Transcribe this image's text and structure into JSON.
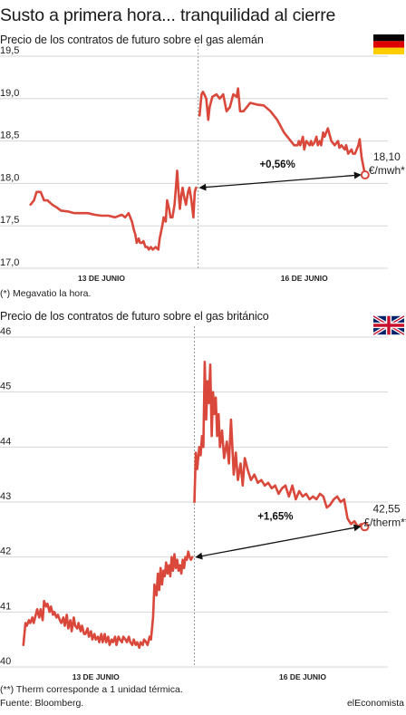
{
  "title": "Susto a primera hora... tranquilidad al cierre",
  "footer": {
    "source": "Fuente: Bloomberg.",
    "brand": "elEconomista"
  },
  "colors": {
    "line": "#d9483b",
    "grid": "#d6d6d6",
    "arrow": "#111111",
    "dash": "#9a9a9a"
  },
  "icons": {
    "chart1_flag": "germany-flag-icon",
    "chart2_flag": "uk-flag-icon"
  },
  "chart_data": [
    {
      "type": "line",
      "title": "Precio de los contratos de futuro sobre el gas alemán",
      "ylim": [
        17.0,
        19.5
      ],
      "yticks": [
        17.0,
        17.5,
        18.0,
        18.5,
        19.0,
        19.5
      ],
      "ytick_labels": [
        "17,0",
        "17,5",
        "18,0",
        "18,5",
        "19,0",
        "19,5"
      ],
      "xtick_labels": [
        "13 DE JUNIO",
        "16 DE JUNIO"
      ],
      "xticks": [
        13,
        16
      ],
      "xlim": [
        11.9,
        17.13
      ],
      "session_break": 14.43,
      "note": "(*) Megavatio la hora.",
      "change_label": "+0,56%",
      "end_value_label": "18,10",
      "end_unit_label": "€/mwh*",
      "grid": true,
      "series": [
        {
          "x": [
            11.95,
            12.0,
            12.04,
            12.06,
            12.1,
            12.15,
            12.2,
            12.27,
            12.33,
            12.4,
            12.5,
            12.6,
            12.7,
            12.8,
            12.9,
            13.0,
            13.1,
            13.2,
            13.3,
            13.35,
            13.4,
            13.45,
            13.48,
            13.5,
            13.52,
            13.55,
            13.57,
            13.6,
            13.62,
            13.65,
            13.68,
            13.7,
            13.73,
            13.76,
            13.8,
            13.84,
            13.86,
            13.9,
            13.92,
            13.95,
            13.97,
            14.0,
            14.02,
            14.05,
            14.08,
            14.1,
            14.12,
            14.14,
            14.16,
            14.18,
            14.2,
            14.22,
            14.25,
            14.28,
            14.3,
            14.33,
            14.36,
            14.38,
            14.4
          ],
          "y": [
            17.75,
            17.8,
            17.9,
            17.9,
            17.9,
            17.8,
            17.8,
            17.75,
            17.72,
            17.68,
            17.67,
            17.65,
            17.65,
            17.65,
            17.63,
            17.62,
            17.62,
            17.6,
            17.63,
            17.6,
            17.65,
            17.55,
            17.45,
            17.4,
            17.3,
            17.35,
            17.3,
            17.3,
            17.32,
            17.25,
            17.25,
            17.22,
            17.25,
            17.22,
            17.25,
            17.22,
            17.35,
            17.5,
            17.6,
            17.55,
            17.8,
            17.7,
            17.6,
            17.6,
            17.75,
            17.95,
            18.15,
            17.9,
            17.7,
            17.85,
            17.95,
            17.85,
            17.75,
            17.9,
            17.95,
            17.8,
            17.6,
            17.9,
            17.95
          ]
        },
        {
          "x": [
            14.45,
            14.48,
            14.5,
            14.52,
            14.55,
            14.58,
            14.6,
            14.64,
            14.7,
            14.75,
            14.8,
            14.85,
            14.9,
            14.95,
            15.0,
            15.02,
            15.05,
            15.1,
            15.15,
            15.2,
            15.3,
            15.4,
            15.5,
            15.6,
            15.7,
            15.8,
            15.85,
            15.9,
            15.92,
            15.94,
            15.96,
            15.98,
            16.0,
            16.03,
            16.05,
            16.08,
            16.1,
            16.12,
            16.15,
            16.18,
            16.2,
            16.23,
            16.25,
            16.28,
            16.3,
            16.35,
            16.4,
            16.45,
            16.5,
            16.52,
            16.55,
            16.6,
            16.62,
            16.65,
            16.7,
            16.72,
            16.75,
            16.8,
            16.82,
            16.85,
            16.9
          ],
          "y": [
            18.8,
            19.05,
            19.08,
            19.05,
            19.0,
            18.75,
            18.9,
            19.02,
            19.05,
            19.0,
            19.05,
            18.85,
            18.9,
            19.05,
            19.02,
            19.12,
            18.85,
            18.85,
            18.9,
            18.95,
            18.93,
            18.92,
            18.85,
            18.75,
            18.6,
            18.5,
            18.45,
            18.45,
            18.5,
            18.45,
            18.5,
            18.55,
            18.4,
            18.5,
            18.48,
            18.45,
            18.5,
            18.45,
            18.48,
            18.55,
            18.45,
            18.5,
            18.45,
            18.6,
            18.55,
            18.65,
            18.5,
            18.45,
            18.5,
            18.42,
            18.45,
            18.4,
            18.45,
            18.35,
            18.4,
            18.35,
            18.35,
            18.45,
            18.52,
            18.3,
            18.1
          ]
        }
      ]
    },
    {
      "type": "line",
      "title": "Precio de los contratos de futuro sobre el gas británico",
      "ylim": [
        40,
        46
      ],
      "yticks": [
        40,
        41,
        42,
        43,
        44,
        45,
        46
      ],
      "ytick_labels": [
        "40",
        "41",
        "42",
        "43",
        "44",
        "45",
        "46"
      ],
      "xtick_labels": [
        "13 DE JUNIO",
        "16 DE JUNIO"
      ],
      "xticks": [
        13,
        16
      ],
      "xlim": [
        11.9,
        17.13
      ],
      "session_break": 14.43,
      "note": "(**) Therm corresponde a 1 unidad térmica.",
      "change_label": "+1,65%",
      "end_value_label": "42,55",
      "end_unit_label": "£/therm**",
      "grid": true,
      "series": [
        {
          "x": [
            11.95,
            11.98,
            12.0,
            12.03,
            12.05,
            12.08,
            12.1,
            12.13,
            12.15,
            12.18,
            12.2,
            12.23,
            12.25,
            12.28,
            12.3,
            12.33,
            12.35,
            12.38,
            12.4,
            12.43,
            12.45,
            12.48,
            12.5,
            12.53,
            12.55,
            12.58,
            12.6,
            12.63,
            12.65,
            12.68,
            12.7,
            12.73,
            12.75,
            12.78,
            12.8,
            12.83,
            12.85,
            12.88,
            12.9,
            12.93,
            12.95,
            12.98,
            13.0,
            13.03,
            13.05,
            13.08,
            13.1,
            13.13,
            13.15,
            13.18,
            13.2,
            13.23,
            13.25,
            13.28,
            13.3,
            13.33,
            13.35,
            13.38,
            13.4,
            13.43,
            13.45,
            13.48,
            13.5,
            13.53,
            13.55,
            13.58,
            13.6,
            13.63,
            13.65,
            13.68,
            13.7,
            13.73,
            13.75,
            13.78,
            13.8,
            13.83,
            13.85,
            13.88,
            13.9,
            13.92,
            13.94,
            13.96,
            13.98,
            14.0,
            14.02,
            14.04,
            14.06,
            14.08,
            14.1,
            14.12,
            14.14,
            14.16,
            14.18,
            14.2,
            14.22,
            14.24,
            14.26,
            14.28,
            14.3,
            14.32,
            14.34,
            14.36,
            14.38,
            14.4
          ],
          "y": [
            40.4,
            40.8,
            40.75,
            40.85,
            40.8,
            40.9,
            40.8,
            40.95,
            41.05,
            40.9,
            41.05,
            40.85,
            41.2,
            41.1,
            41.15,
            41.0,
            41.1,
            40.95,
            41.0,
            40.9,
            40.95,
            40.85,
            40.8,
            40.9,
            40.75,
            40.95,
            40.7,
            40.85,
            40.65,
            40.9,
            40.75,
            40.7,
            40.8,
            40.65,
            40.75,
            40.6,
            40.6,
            40.7,
            40.55,
            40.65,
            40.5,
            40.6,
            40.5,
            40.55,
            40.45,
            40.6,
            40.45,
            40.6,
            40.45,
            40.55,
            40.4,
            40.5,
            40.45,
            40.55,
            40.4,
            40.55,
            40.5,
            40.45,
            40.55,
            40.5,
            40.45,
            40.55,
            40.45,
            40.4,
            40.5,
            40.4,
            40.45,
            40.35,
            40.45,
            40.4,
            40.5,
            40.45,
            40.4,
            40.55,
            40.5,
            40.9,
            41.5,
            41.3,
            41.7,
            41.4,
            41.8,
            41.5,
            41.75,
            41.65,
            41.9,
            41.7,
            41.85,
            41.65,
            42.0,
            41.75,
            42.05,
            41.8,
            41.95,
            41.75,
            41.85,
            41.7,
            41.95,
            41.8,
            42.0,
            41.95,
            42.1,
            42.0,
            41.95,
            42.0
          ]
        },
        {
          "x": [
            14.43,
            14.45,
            14.47,
            14.5,
            14.52,
            14.54,
            14.56,
            14.58,
            14.6,
            14.62,
            14.64,
            14.66,
            14.68,
            14.7,
            14.72,
            14.74,
            14.76,
            14.78,
            14.8,
            14.83,
            14.86,
            14.9,
            14.93,
            14.96,
            15.0,
            15.03,
            15.06,
            15.1,
            15.13,
            15.16,
            15.2,
            15.25,
            15.3,
            15.35,
            15.4,
            15.45,
            15.5,
            15.55,
            15.6,
            15.65,
            15.7,
            15.75,
            15.8,
            15.85,
            15.9,
            15.95,
            16.0,
            16.05,
            16.1,
            16.15,
            16.2,
            16.25,
            16.3,
            16.35,
            16.4,
            16.45,
            16.5,
            16.55,
            16.6,
            16.65,
            16.7,
            16.75,
            16.8,
            16.85,
            16.9
          ],
          "y": [
            43.0,
            43.9,
            43.6,
            44.0,
            43.85,
            44.2,
            44.0,
            45.55,
            44.5,
            45.2,
            44.8,
            45.5,
            44.2,
            45.0,
            44.6,
            44.9,
            44.2,
            44.6,
            44.0,
            44.3,
            43.8,
            44.1,
            43.7,
            44.5,
            43.5,
            43.9,
            43.4,
            43.7,
            43.3,
            43.8,
            43.6,
            43.4,
            43.5,
            43.35,
            43.4,
            43.3,
            43.35,
            43.25,
            43.3,
            43.15,
            43.25,
            43.3,
            43.1,
            43.3,
            43.05,
            43.2,
            43.1,
            43.15,
            43.05,
            43.1,
            43.05,
            43.15,
            43.1,
            42.9,
            42.95,
            43.05,
            43.1,
            43.0,
            43.05,
            42.7,
            42.6,
            42.65,
            42.55,
            42.6,
            42.55
          ]
        }
      ]
    }
  ]
}
